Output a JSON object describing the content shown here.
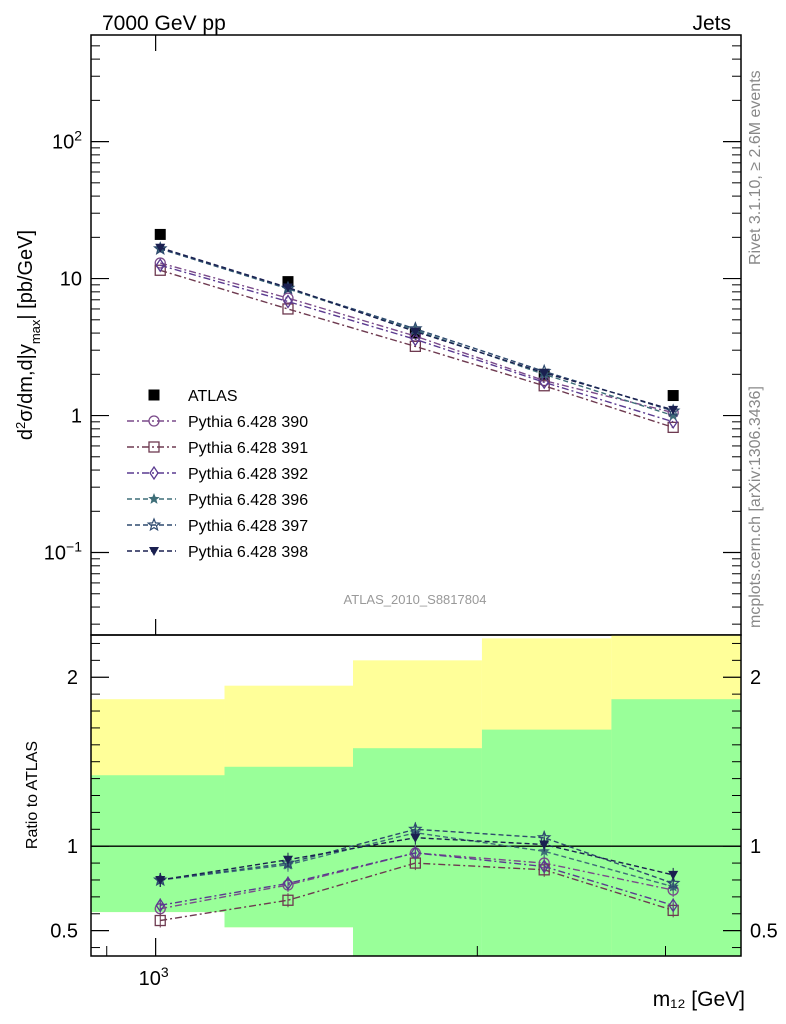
{
  "header": {
    "left": "7000 GeV pp",
    "right": "Jets",
    "rivet_label": "Rivet 3.1.10, ≥ 2.6M events",
    "source_label": "mcplots.cern.ch [arXiv:1306.3436]",
    "analysis_label": "ATLAS_2010_S8817804"
  },
  "colors": {
    "data": "#000000",
    "p390": "#7a4a8a",
    "p391": "#6e3a50",
    "p392": "#5a3a90",
    "p396": "#3e6e78",
    "p397": "#2e4a6e",
    "p398": "#1a2050",
    "band_yellow": "#ffff99",
    "band_green": "#99ff99"
  },
  "chart_data": [
    {
      "type": "scatter",
      "panel": "main",
      "ylabel": "d²σ/dm,d|y_max| [pb/GeV]",
      "yscale": "log",
      "xscale": "log",
      "ylim": [
        0.025,
        600
      ],
      "y_ticks": [
        {
          "value": 0.1,
          "base": "10",
          "exp": "−1"
        },
        {
          "value": 1,
          "base": "1",
          "exp": ""
        },
        {
          "value": 10,
          "base": "10",
          "exp": ""
        },
        {
          "value": 100,
          "base": "10",
          "exp": "2"
        }
      ],
      "x": [
        1010,
        1330,
        1750,
        2310,
        3050
      ],
      "series": [
        {
          "name": "ATLAS",
          "key": "data",
          "marker": "square-filled",
          "values": [
            21,
            9.5,
            4.0,
            2.0,
            1.4
          ]
        },
        {
          "name": "Pythia 6.428 390",
          "key": "p390",
          "marker": "circle-open",
          "line": "dashdot",
          "values": [
            13,
            7.2,
            3.8,
            1.8,
            1.05
          ]
        },
        {
          "name": "Pythia 6.428 391",
          "key": "p391",
          "marker": "square-open",
          "line": "dashdot",
          "values": [
            11.5,
            6.0,
            3.2,
            1.65,
            0.82
          ]
        },
        {
          "name": "Pythia 6.428 392",
          "key": "p392",
          "marker": "diamond-open",
          "line": "dashdot",
          "values": [
            12.5,
            6.8,
            3.6,
            1.75,
            0.9
          ]
        },
        {
          "name": "Pythia 6.428 396",
          "key": "p396",
          "marker": "star-filled",
          "line": "dashed",
          "values": [
            16.5,
            8.4,
            4.2,
            2.0,
            1.0
          ]
        },
        {
          "name": "Pythia 6.428 397",
          "key": "p397",
          "marker": "star-open",
          "line": "dashed",
          "values": [
            16.5,
            8.5,
            4.3,
            2.1,
            1.08
          ]
        },
        {
          "name": "Pythia 6.428 398",
          "key": "p398",
          "marker": "triangle-down-filled",
          "line": "dashed",
          "values": [
            16.8,
            8.6,
            4.1,
            2.05,
            1.1
          ]
        }
      ]
    },
    {
      "type": "line",
      "panel": "ratio",
      "ylabel": "Ratio to ATLAS",
      "xlabel": "m₁₂ [GeV]",
      "x_tick_label": {
        "value": 1000,
        "base": "10",
        "exp": "3"
      },
      "ylim": [
        0.35,
        2.25
      ],
      "y_ticks": [
        0.5,
        1,
        2
      ],
      "y_tick_labels": [
        "0.5",
        "1",
        "2"
      ],
      "bands": {
        "bin_edges": [
          870,
          1160,
          1530,
          2020,
          2670,
          3530
        ],
        "yellow_low": [
          0.61,
          0.52,
          0.52,
          0.35,
          0.35
        ],
        "yellow_high": [
          1.87,
          1.95,
          2.1,
          2.23,
          2.25
        ],
        "green_low": [
          0.35,
          0.35,
          0.35,
          0.35,
          0.35
        ],
        "green_high": [
          1.42,
          1.47,
          1.58,
          1.69,
          1.87
        ]
      },
      "x": [
        1010,
        1330,
        1750,
        2310,
        3050
      ],
      "series": [
        {
          "name": "Pythia 6.428 390",
          "key": "p390",
          "marker": "circle-open",
          "line": "dashdot",
          "values": [
            0.63,
            0.77,
            0.96,
            0.9,
            0.74
          ]
        },
        {
          "name": "Pythia 6.428 391",
          "key": "p391",
          "marker": "square-open",
          "line": "dashdot",
          "values": [
            0.56,
            0.68,
            0.9,
            0.86,
            0.62
          ]
        },
        {
          "name": "Pythia 6.428 392",
          "key": "p392",
          "marker": "diamond-open",
          "line": "dashdot",
          "values": [
            0.65,
            0.78,
            0.96,
            0.88,
            0.65
          ]
        },
        {
          "name": "Pythia 6.428 396",
          "key": "p396",
          "marker": "star-filled",
          "line": "dashed",
          "values": [
            0.8,
            0.89,
            1.08,
            0.97,
            0.76
          ]
        },
        {
          "name": "Pythia 6.428 397",
          "key": "p397",
          "marker": "star-open",
          "line": "dashed",
          "values": [
            0.8,
            0.9,
            1.1,
            1.05,
            0.78
          ]
        },
        {
          "name": "Pythia 6.428 398",
          "key": "p398",
          "marker": "triangle-down-filled",
          "line": "dashed",
          "values": [
            0.8,
            0.92,
            1.05,
            1.01,
            0.83
          ]
        }
      ]
    }
  ]
}
